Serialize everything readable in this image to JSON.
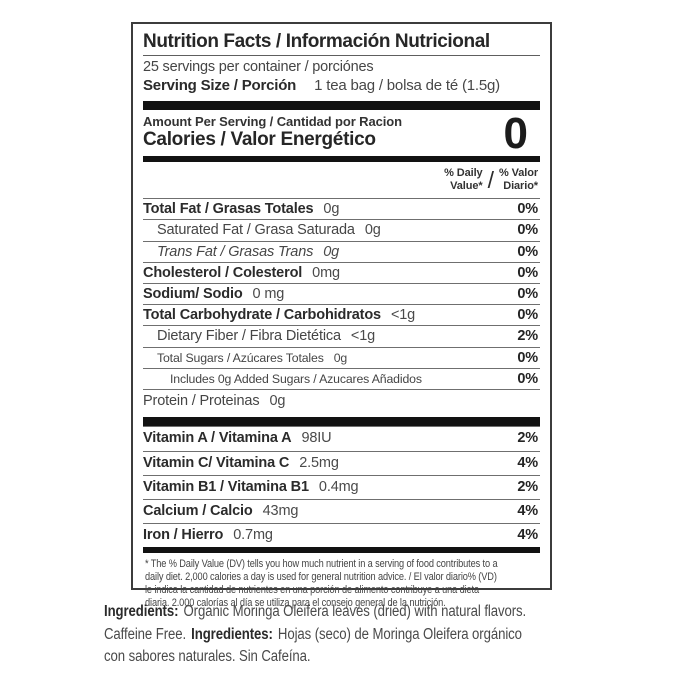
{
  "label": {
    "title": "Nutrition Facts / Información Nutricional",
    "servings_per_container": "25 servings per container / porciónes",
    "serving_size_label": "Serving Size / Porción",
    "serving_size_value": "1 tea bag / bolsa de té (1.5g)",
    "amount_per_serving": "Amount Per Serving / Cantidad por Racion",
    "calories_label": "Calories / Valor Energético",
    "calories_value": "0",
    "dv_header": {
      "en_line1": "% Daily",
      "en_line2": "Value*",
      "slash": "/",
      "es_line1": "% Valor",
      "es_line2": "Diario*"
    },
    "rows": [
      {
        "name": "Total Fat / Grasas Totales",
        "value": "0g",
        "dv": "0%"
      },
      {
        "name": "Saturated Fat / Grasa Saturada",
        "value": "0g",
        "dv": "0%"
      },
      {
        "name": "Trans Fat / Grasas Trans",
        "value": "0g",
        "dv": "0%"
      },
      {
        "name": "Cholesterol / Colesterol",
        "value": "0mg",
        "dv": "0%"
      },
      {
        "name": "Sodium/ Sodio",
        "value": "0 mg",
        "dv": "0%"
      },
      {
        "name": "Total Carbohydrate / Carbohidratos",
        "value": "<1g",
        "dv": "0%"
      },
      {
        "name": "Dietary Fiber / Fibra Dietética",
        "value": "<1g",
        "dv": "2%"
      },
      {
        "name": "Total Sugars / Azúcares Totales",
        "value": "0g",
        "dv": "0%"
      },
      {
        "name": "Includes 0g Added Sugars / Azucares Añadidos",
        "value": "",
        "dv": "0%"
      },
      {
        "name": "Protein / Proteinas",
        "value": "0g",
        "dv": ""
      }
    ],
    "vitamins": [
      {
        "name": "Vitamin A / Vitamina A",
        "value": "98IU",
        "dv": "2%"
      },
      {
        "name": "Vitamin C/ Vitamina C",
        "value": "2.5mg",
        "dv": "4%"
      },
      {
        "name": "Vitamin B1 / Vitamina B1",
        "value": "0.4mg",
        "dv": "2%"
      },
      {
        "name": "Calcium / Calcio",
        "value": "43mg",
        "dv": "4%"
      },
      {
        "name": "Iron / Hierro",
        "value": "0.7mg",
        "dv": "4%"
      }
    ],
    "footnote_lines": [
      "* The % Daily Value (DV) tells you how much nutrient in a serving of food contributes to a",
      "daily diet. 2,000 calories a day is used for general nutrition advice. / El valor diario% (VD)",
      "le indica la cantidad de nutrientes en una porción de alimento contribuye a una dieta",
      "diaria. 2.000 calorías al día se utiliza para el consejo general de la nutrición."
    ]
  },
  "ingredients": {
    "label_en": "Ingredients:",
    "text_en_1": "Organic Moringa Oleifera leaves (dried) with natural flavors.",
    "text_en_2": "Caffeine Free.",
    "label_es": "Ingredientes:",
    "text_es_1": "Hojas (seco) de Moringa Oleifera orgánico",
    "text_es_2": "con sabores naturales. Sin Cafeína."
  }
}
